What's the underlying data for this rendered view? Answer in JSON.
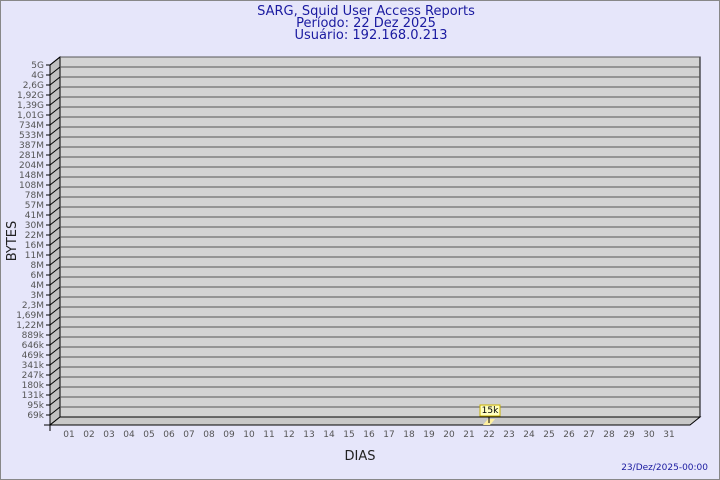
{
  "chart_data": {
    "type": "bar",
    "title": "SARG, Squid User Access Reports",
    "subtitle_lines": [
      "Período: 22 Dez 2025",
      "Usuário: 192.168.0.213"
    ],
    "xlabel": "DIAS",
    "ylabel": "BYTES",
    "y_scale": "log",
    "y_tick_labels": [
      "5G",
      "4G",
      "2,6G",
      "1,92G",
      "1,39G",
      "1,01G",
      "734M",
      "533M",
      "387M",
      "281M",
      "204M",
      "148M",
      "108M",
      "78M",
      "57M",
      "41M",
      "30M",
      "22M",
      "16M",
      "11M",
      "8M",
      "6M",
      "4M",
      "3M",
      "2,3M",
      "1,69M",
      "1,22M",
      "889k",
      "646k",
      "469k",
      "341k",
      "247k",
      "180k",
      "131k",
      "95k",
      "69k"
    ],
    "categories": [
      "01",
      "02",
      "03",
      "04",
      "05",
      "06",
      "07",
      "08",
      "09",
      "10",
      "11",
      "12",
      "13",
      "14",
      "15",
      "16",
      "17",
      "18",
      "19",
      "20",
      "21",
      "22",
      "23",
      "24",
      "25",
      "26",
      "27",
      "28",
      "29",
      "30",
      "31"
    ],
    "series": [
      {
        "points": [
          {
            "x": "22",
            "value": 15000,
            "label": "15k"
          }
        ]
      }
    ],
    "grid": true,
    "colors": {
      "background": "#e6e6fa",
      "plot": "#d3d3d3",
      "bar": "#fff0a0",
      "title": "#1a1aa0"
    }
  },
  "footer": {
    "timestamp": "23/Dez/2025-00:00"
  }
}
